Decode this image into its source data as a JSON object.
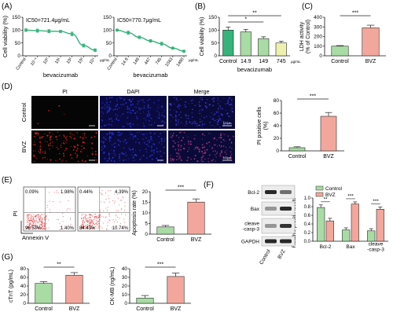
{
  "colors": {
    "green": "#34b37a",
    "light_green": "#a9dba4",
    "light_yellow": "#eef0ad",
    "pink": "#f3a79c",
    "red_bar": "#f08f82",
    "axis": "#111111",
    "pi_red": "#e0241c",
    "dapi_blue": "#2a3ad8",
    "merge_purple": "#8a3aa8",
    "flow_red": "#d6262a"
  },
  "panels": {
    "A": {
      "letter": "(A)"
    },
    "B": {
      "letter": "(B)"
    },
    "C": {
      "letter": "(C)"
    },
    "D": {
      "letter": "(D)"
    },
    "E": {
      "letter": "(E)"
    },
    "F": {
      "letter": "(F)"
    },
    "G": {
      "letter": "(G)"
    }
  },
  "micrographs": {
    "columns": [
      "PI",
      "DAPI",
      "Merge"
    ],
    "rows": [
      "Control",
      "BVZ"
    ],
    "scale_label": "100μm"
  },
  "flow": {
    "plots": [
      {
        "q_ul": "0.09%",
        "q_ur": "1.98%",
        "q_ll": "96.53%",
        "q_lr": "1.40%"
      },
      {
        "q_ul": "0.44%",
        "q_ur": "4.39%",
        "q_ll": "84.43%",
        "q_lr": "10.74%"
      }
    ],
    "x_axis": "Annexin V",
    "y_axis": "PI"
  },
  "western": {
    "bands": [
      "Bcl-2",
      "Bax",
      "cleave\n-casp-3",
      "GAPDH"
    ],
    "lanes": [
      "Control",
      "BVZ"
    ]
  },
  "chart_data": [
    {
      "id": "A1",
      "type": "line",
      "title": "IC50=721.4μg/mL",
      "ylabel": "Cell viability (%)",
      "xlabel": "bevacizumab",
      "x_tick_labels": [
        "Control",
        "10⁻¹",
        "10⁰",
        "10¹",
        "10²",
        "10³",
        "10⁴"
      ],
      "x_unit": "μg/mL",
      "y_ticks": [
        0,
        50,
        100,
        150
      ],
      "ylim": [
        0,
        150
      ],
      "values": [
        100,
        98,
        96,
        95,
        85,
        40,
        22
      ],
      "errors": [
        5,
        6,
        6,
        4,
        7,
        6,
        5
      ]
    },
    {
      "id": "A2",
      "type": "line",
      "title": "IC50=770.7μg/mL",
      "ylabel": "",
      "xlabel": "bevacizumab",
      "x_tick_labels": [
        "Control",
        "14.9",
        "149",
        "447",
        "745",
        "1043",
        "1490"
      ],
      "x_unit": "μg/mL",
      "y_ticks": [
        0,
        50,
        100,
        150
      ],
      "ylim": [
        0,
        150
      ],
      "values": [
        100,
        90,
        72,
        58,
        47,
        30,
        18
      ],
      "errors": [
        4,
        6,
        5,
        5,
        6,
        4,
        4
      ]
    },
    {
      "id": "B",
      "type": "bar",
      "ylabel": "Cell viability (%)",
      "xlabel": "bevacizumab",
      "categories": [
        "Control",
        "14.9",
        "149",
        "745"
      ],
      "x_unit": "μg/mL",
      "values": [
        100,
        93,
        67,
        50
      ],
      "errors": [
        12,
        10,
        7,
        7
      ],
      "colors": [
        "#34b37a",
        "#a9dba4",
        "#a9dba4",
        "#eef0ad"
      ],
      "y_ticks": [
        0,
        50,
        100,
        150
      ],
      "ylim": [
        0,
        150
      ],
      "significance": [
        {
          "from": 0,
          "to": 3,
          "label": "**"
        },
        {
          "from": 0,
          "to": 2,
          "label": "*"
        }
      ]
    },
    {
      "id": "C",
      "type": "bar",
      "ylabel": "LDH activity\n(% of Control)",
      "categories": [
        "Control",
        "BVZ"
      ],
      "values": [
        100,
        290
      ],
      "errors": [
        6,
        28
      ],
      "colors": [
        "#a9dba4",
        "#f3a79c"
      ],
      "y_ticks": [
        0,
        100,
        200,
        300,
        400
      ],
      "ylim": [
        0,
        400
      ],
      "significance": [
        {
          "from": 0,
          "to": 1,
          "label": "***"
        }
      ]
    },
    {
      "id": "D",
      "type": "bar",
      "ylabel": "PI positive cells\n(%)",
      "categories": [
        "Control",
        "BVZ"
      ],
      "values": [
        5,
        55
      ],
      "errors": [
        1.5,
        6
      ],
      "colors": [
        "#a9dba4",
        "#f3a79c"
      ],
      "y_ticks": [
        0,
        20,
        40,
        60,
        80
      ],
      "ylim": [
        0,
        80
      ],
      "significance": [
        {
          "from": 0,
          "to": 1,
          "label": "***"
        }
      ]
    },
    {
      "id": "E",
      "type": "bar",
      "ylabel": "Apoptosis rate (%)",
      "categories": [
        "Control",
        "BVZ"
      ],
      "values": [
        3.4,
        15.1
      ],
      "errors": [
        0.7,
        1.5
      ],
      "colors": [
        "#a9dba4",
        "#f3a79c"
      ],
      "y_ticks": [
        0,
        5,
        10,
        15,
        20
      ],
      "ylim": [
        0,
        20
      ],
      "significance": [
        {
          "from": 0,
          "to": 1,
          "label": "***"
        }
      ]
    },
    {
      "id": "F",
      "type": "bar",
      "ylabel": "Relative protein levels",
      "categories": [
        "Bcl-2",
        "Bax",
        "cleave\n-casp-3"
      ],
      "series": [
        {
          "name": "Control",
          "values": [
            0.78,
            0.26,
            0.24
          ],
          "errors": [
            0.06,
            0.05,
            0.05
          ],
          "color": "#a9dba4"
        },
        {
          "name": "BVZ",
          "values": [
            0.47,
            0.86,
            0.74
          ],
          "errors": [
            0.06,
            0.05,
            0.05
          ],
          "color": "#f3a79c"
        }
      ],
      "y_ticks": [
        0.0,
        0.2,
        0.4,
        0.6,
        0.8,
        1.0
      ],
      "ylim": [
        0,
        1.0
      ],
      "legend": "top-left",
      "significance": [
        "**",
        "***",
        "***"
      ]
    },
    {
      "id": "G1",
      "type": "bar",
      "ylabel": "cTnT (pg/mL)",
      "categories": [
        "Control",
        "BVZ"
      ],
      "values": [
        46,
        65
      ],
      "errors": [
        4,
        6
      ],
      "colors": [
        "#a9dba4",
        "#f3a79c"
      ],
      "y_ticks": [
        0,
        20,
        40,
        60,
        80
      ],
      "ylim": [
        0,
        80
      ],
      "significance": [
        {
          "from": 0,
          "to": 1,
          "label": "**"
        }
      ]
    },
    {
      "id": "G2",
      "type": "bar",
      "ylabel": "CK-MB (ng/mL)",
      "categories": [
        "Control",
        "BVZ"
      ],
      "values": [
        6,
        31
      ],
      "errors": [
        3,
        4
      ],
      "colors": [
        "#a9dba4",
        "#f3a79c"
      ],
      "y_ticks": [
        0,
        10,
        20,
        30,
        40
      ],
      "ylim": [
        0,
        40
      ],
      "significance": [
        {
          "from": 0,
          "to": 1,
          "label": "***"
        }
      ]
    }
  ]
}
